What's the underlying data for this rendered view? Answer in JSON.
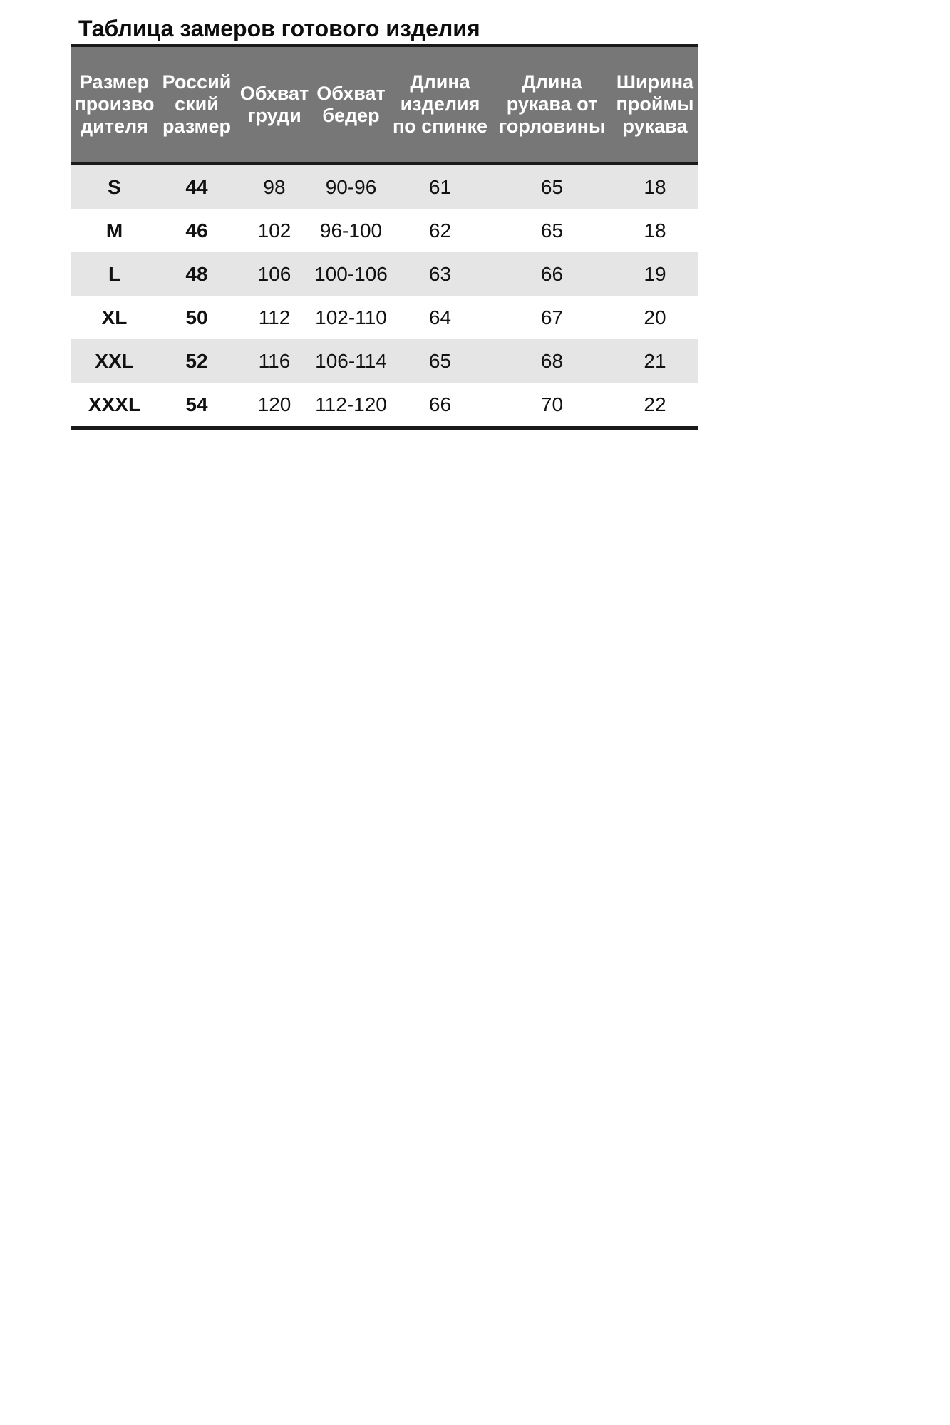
{
  "title": "Таблица замеров готового изделия",
  "table": {
    "headers": [
      "Размер\nпроизво\nдителя",
      "Россий\nский\nразмер",
      "Обхват\nгруди",
      "Обхват\nбедер",
      "Длина\nизделия\nпо спинке",
      "Длина\nрукава от\nгорловины",
      "Ширина\nпроймы\nрукава"
    ],
    "rows": [
      [
        "S",
        "44",
        "98",
        "90-96",
        "61",
        "65",
        "18"
      ],
      [
        "M",
        "46",
        "102",
        "96-100",
        "62",
        "65",
        "18"
      ],
      [
        "L",
        "48",
        "106",
        "100-106",
        "63",
        "66",
        "19"
      ],
      [
        "XL",
        "50",
        "112",
        "102-110",
        "64",
        "67",
        "20"
      ],
      [
        "XXL",
        "52",
        "116",
        "106-114",
        "65",
        "68",
        "21"
      ],
      [
        "XXXL",
        "54",
        "120",
        "112-120",
        "66",
        "70",
        "22"
      ]
    ]
  },
  "colors": {
    "header_bg": "#777777",
    "header_text": "#ffffff",
    "stripe": "#e5e5e5",
    "rule": "#1a1a1a",
    "body_text": "#111111",
    "page_bg": "#ffffff"
  },
  "chart_data": {
    "type": "table",
    "title": "Таблица замеров готового изделия",
    "columns": [
      "Размер производителя",
      "Российский размер",
      "Обхват груди",
      "Обхват бедер",
      "Длина изделия по спинке",
      "Длина рукава от горловины",
      "Ширина проймы рукава"
    ],
    "rows": [
      [
        "S",
        44,
        98,
        "90-96",
        61,
        65,
        18
      ],
      [
        "M",
        46,
        102,
        "96-100",
        62,
        65,
        18
      ],
      [
        "L",
        48,
        106,
        "100-106",
        63,
        66,
        19
      ],
      [
        "XL",
        50,
        112,
        "102-110",
        64,
        67,
        20
      ],
      [
        "XXL",
        52,
        116,
        "106-114",
        65,
        68,
        21
      ],
      [
        "XXXL",
        54,
        120,
        "112-120",
        66,
        70,
        22
      ]
    ],
    "layout": {
      "striped_rows": "odd rows (S, L, XXL) shaded light gray",
      "header_style": "dark gray band, white bold text",
      "grid": false
    }
  }
}
